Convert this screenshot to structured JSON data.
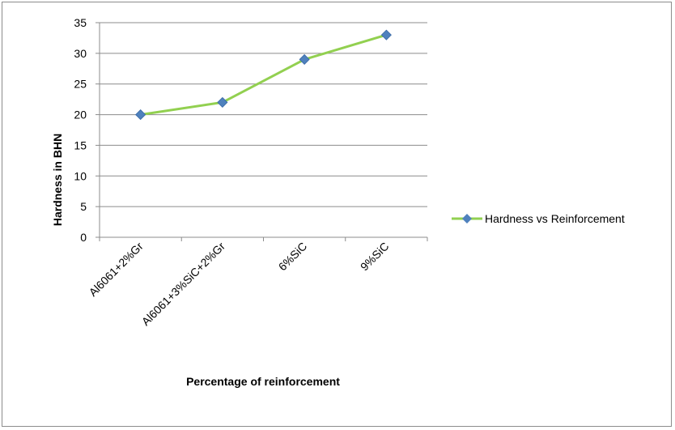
{
  "chart_data": {
    "type": "line",
    "title": "",
    "xlabel": "Percentage of reinforcement",
    "ylabel": "Hardness in BHN",
    "categories": [
      "Al6061+2%Gr",
      "Al6061+3%SiC+2%Gr",
      "6%SiC",
      "9%SiC"
    ],
    "ylim": [
      0,
      35
    ],
    "yticks": [
      "0",
      "5",
      "10",
      "15",
      "20",
      "25",
      "30",
      "35"
    ],
    "grid": true,
    "legend_position": "right",
    "series": [
      {
        "name": "Hardness vs Reinforcement",
        "values": [
          20,
          22,
          29,
          33
        ],
        "line_color": "#92d050",
        "marker_color": "#4f81bd",
        "marker": "diamond"
      }
    ]
  }
}
